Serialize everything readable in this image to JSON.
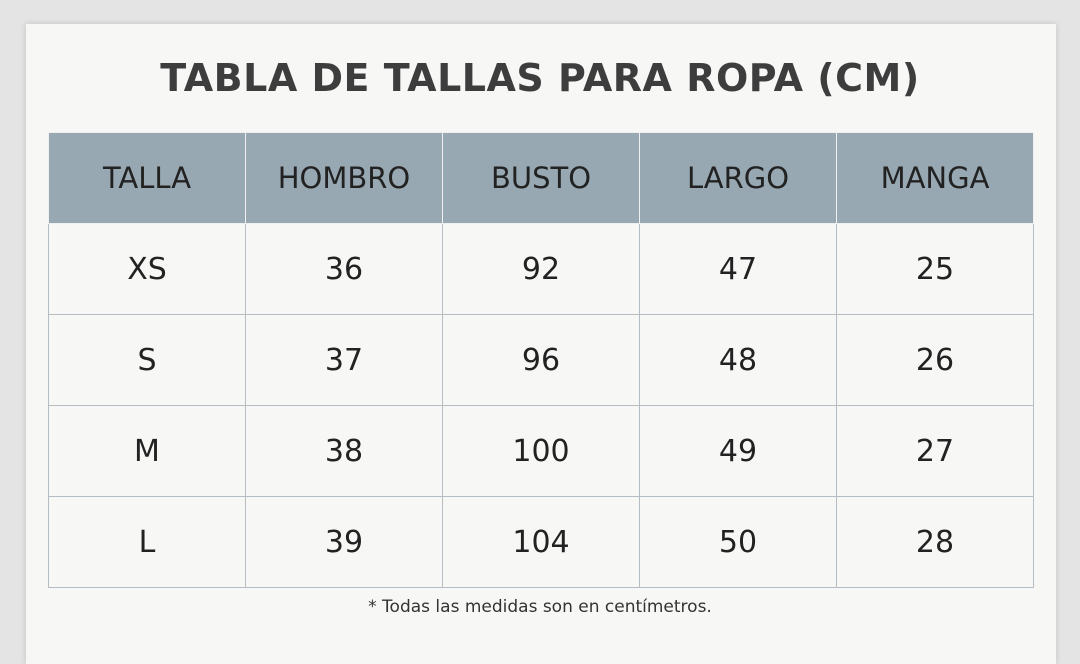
{
  "header": {
    "title": "TABLA DE TALLAS PARA ROPA (CM)"
  },
  "table": {
    "columns": [
      "TALLA",
      "HOMBRO",
      "BUSTO",
      "LARGO",
      "MANGA"
    ],
    "rows": [
      [
        "XS",
        36,
        92,
        47,
        25
      ],
      [
        "S",
        37,
        96,
        48,
        26
      ],
      [
        "M",
        38,
        100,
        49,
        27
      ],
      [
        "L",
        39,
        104,
        50,
        28
      ]
    ]
  },
  "footnote": "* Todas las medidas son en centímetros."
}
